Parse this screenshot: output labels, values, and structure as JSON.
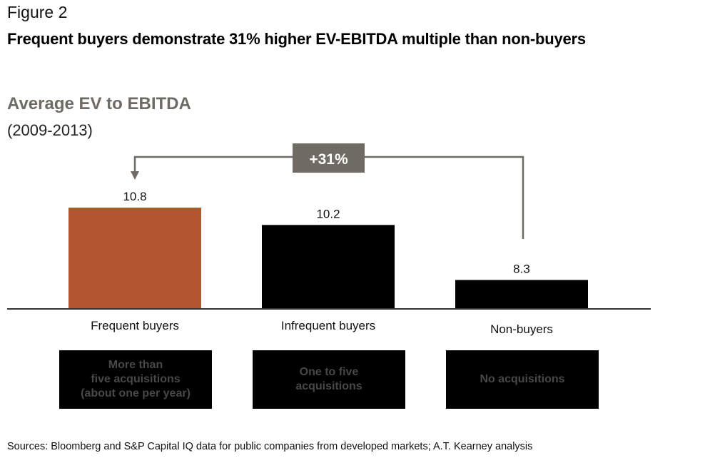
{
  "figure_label": "Figure 2",
  "headline": "Frequent buyers demonstrate 31% higher EV-EBITDA multiple than non-buyers",
  "chart_data": {
    "type": "bar",
    "title": "Average EV to EBITDA",
    "subtitle": "(2009-2013)",
    "categories": [
      "Frequent buyers",
      "Infrequent buyers",
      "Non-buyers"
    ],
    "values": [
      10.8,
      10.2,
      8.3
    ],
    "data_labels": [
      "10.8",
      "10.2",
      "8.3"
    ],
    "colors": [
      "#b1562e",
      "#000000",
      "#000000"
    ],
    "ylim": [
      0,
      10.8
    ],
    "grid": false,
    "annotation": {
      "label": "+31%",
      "from": "Non-buyers",
      "to": "Frequent buyers",
      "color": "#6f6a63"
    }
  },
  "descriptions": [
    "More than\nfive acquisitions\n(about one per year)",
    "One to five\nacquisitions",
    "No acquisitions"
  ],
  "source": "Sources: Bloomberg and S&P Capital IQ data for public companies from developed markets; A.T. Kearney analysis"
}
